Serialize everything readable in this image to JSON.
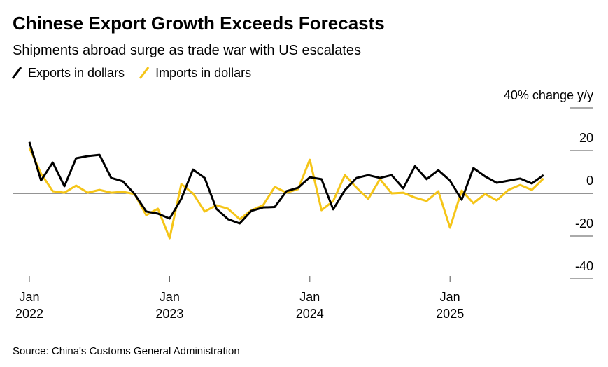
{
  "chart_data": {
    "type": "line",
    "title": "Chinese Export Growth Exceeds Forecasts",
    "subtitle": "Shipments abroad surge as trade war with US escalates",
    "source": "Source: China's Customs General Administration",
    "categories": [
      "2022-01",
      "2022-02",
      "2022-03",
      "2022-04",
      "2022-05",
      "2022-06",
      "2022-07",
      "2022-08",
      "2022-09",
      "2022-10",
      "2022-11",
      "2022-12",
      "2023-01",
      "2023-02",
      "2023-03",
      "2023-04",
      "2023-05",
      "2023-06",
      "2023-07",
      "2023-08",
      "2023-09",
      "2023-10",
      "2023-11",
      "2023-12",
      "2024-01",
      "2024-02",
      "2024-03",
      "2024-04",
      "2024-05",
      "2024-06",
      "2024-07",
      "2024-08",
      "2024-09",
      "2024-10",
      "2024-11",
      "2024-12",
      "2025-01",
      "2025-02",
      "2025-03",
      "2025-04",
      "2025-05",
      "2025-06",
      "2025-07",
      "2025-08",
      "2025-09"
    ],
    "series": [
      {
        "name": "Exports in dollars",
        "color": "#000000",
        "values": [
          24,
          6,
          14.4,
          3.3,
          16.4,
          17.4,
          18,
          7.2,
          5.6,
          -0.3,
          -8.5,
          -9.5,
          -11.8,
          -2.6,
          11.1,
          7.2,
          -7.2,
          -12.1,
          -14.1,
          -8.2,
          -6.6,
          -6.4,
          1,
          2.6,
          7.5,
          6.6,
          -7.5,
          1.5,
          7.2,
          8.5,
          7.2,
          8.5,
          2.3,
          12.7,
          6.6,
          10.8,
          5.9,
          -3,
          11.8,
          7.9,
          4.9,
          5.9,
          6.9,
          4.6,
          8.5
        ]
      },
      {
        "name": "Imports in dollars",
        "color": "#f5c518",
        "values": [
          21.3,
          9.2,
          1,
          0.3,
          3.6,
          0.3,
          1.6,
          0.3,
          0.7,
          -0.3,
          -10.2,
          -7.2,
          -21,
          4.3,
          0,
          -8.5,
          -5.6,
          -7.2,
          -12.1,
          -7.9,
          -5.6,
          3,
          0.3,
          2,
          15.7,
          -7.9,
          -3.6,
          8.5,
          2.6,
          -2.6,
          6.6,
          0,
          0.3,
          -2,
          -3.6,
          1,
          -16.1,
          1.3,
          -4.6,
          -0.3,
          -3.3,
          1.6,
          3.9,
          1.6,
          6.9
        ]
      }
    ],
    "xticks": [
      {
        "value": "2022-01",
        "label": [
          "Jan",
          "2022"
        ]
      },
      {
        "value": "2023-01",
        "label": [
          "Jan",
          "2023"
        ]
      },
      {
        "value": "2024-01",
        "label": [
          "Jan",
          "2024"
        ]
      },
      {
        "value": "2025-01",
        "label": [
          "Jan",
          "2025"
        ]
      }
    ],
    "ylim": [
      -40,
      40
    ],
    "yticks": [
      {
        "value": 40,
        "label": "40% change y/y"
      },
      20,
      0,
      -20,
      -40
    ]
  }
}
